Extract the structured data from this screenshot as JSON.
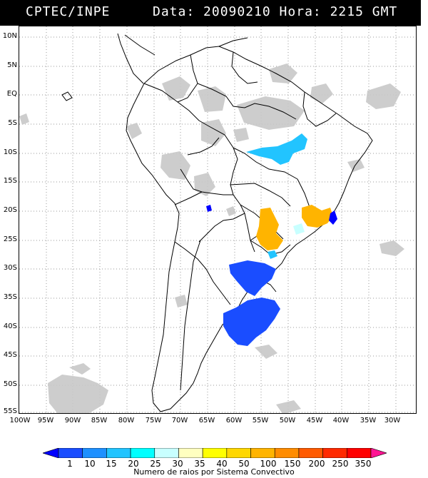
{
  "header": {
    "agency": "CPTEC/INPE",
    "datetime": "Data: 20090210 Hora: 2215 GMT"
  },
  "lat_labels": [
    "10N",
    "5N",
    "EQ",
    "5S",
    "10S",
    "15S",
    "20S",
    "25S",
    "30S",
    "35S",
    "40S",
    "45S",
    "50S",
    "55S"
  ],
  "lon_labels": [
    "100W",
    "95W",
    "90W",
    "85W",
    "80W",
    "75W",
    "70W",
    "65W",
    "60W",
    "55W",
    "50W",
    "45W",
    "40W",
    "35W",
    "30W"
  ],
  "colorbar": {
    "labels": [
      "1",
      "10",
      "15",
      "20",
      "25",
      "30",
      "35",
      "40",
      "50",
      "100",
      "150",
      "200",
      "250",
      "350"
    ],
    "colors": [
      "#0000ff",
      "#1a4dff",
      "#1e90ff",
      "#22c4ff",
      "#00ffff",
      "#c8ffff",
      "#ffffc0",
      "#ffff00",
      "#ffd700",
      "#ffb400",
      "#ff8c00",
      "#ff5a00",
      "#ff2a00",
      "#ff0000",
      "#ff1493"
    ],
    "title": "Numero de raios por Sistema Convectivo"
  },
  "colors": {
    "header_bg": "#000000",
    "header_text": "#ffffff",
    "cloud_gray": "#c8c8c8",
    "boundary": "#000000",
    "grid": "#9a9a9a"
  }
}
